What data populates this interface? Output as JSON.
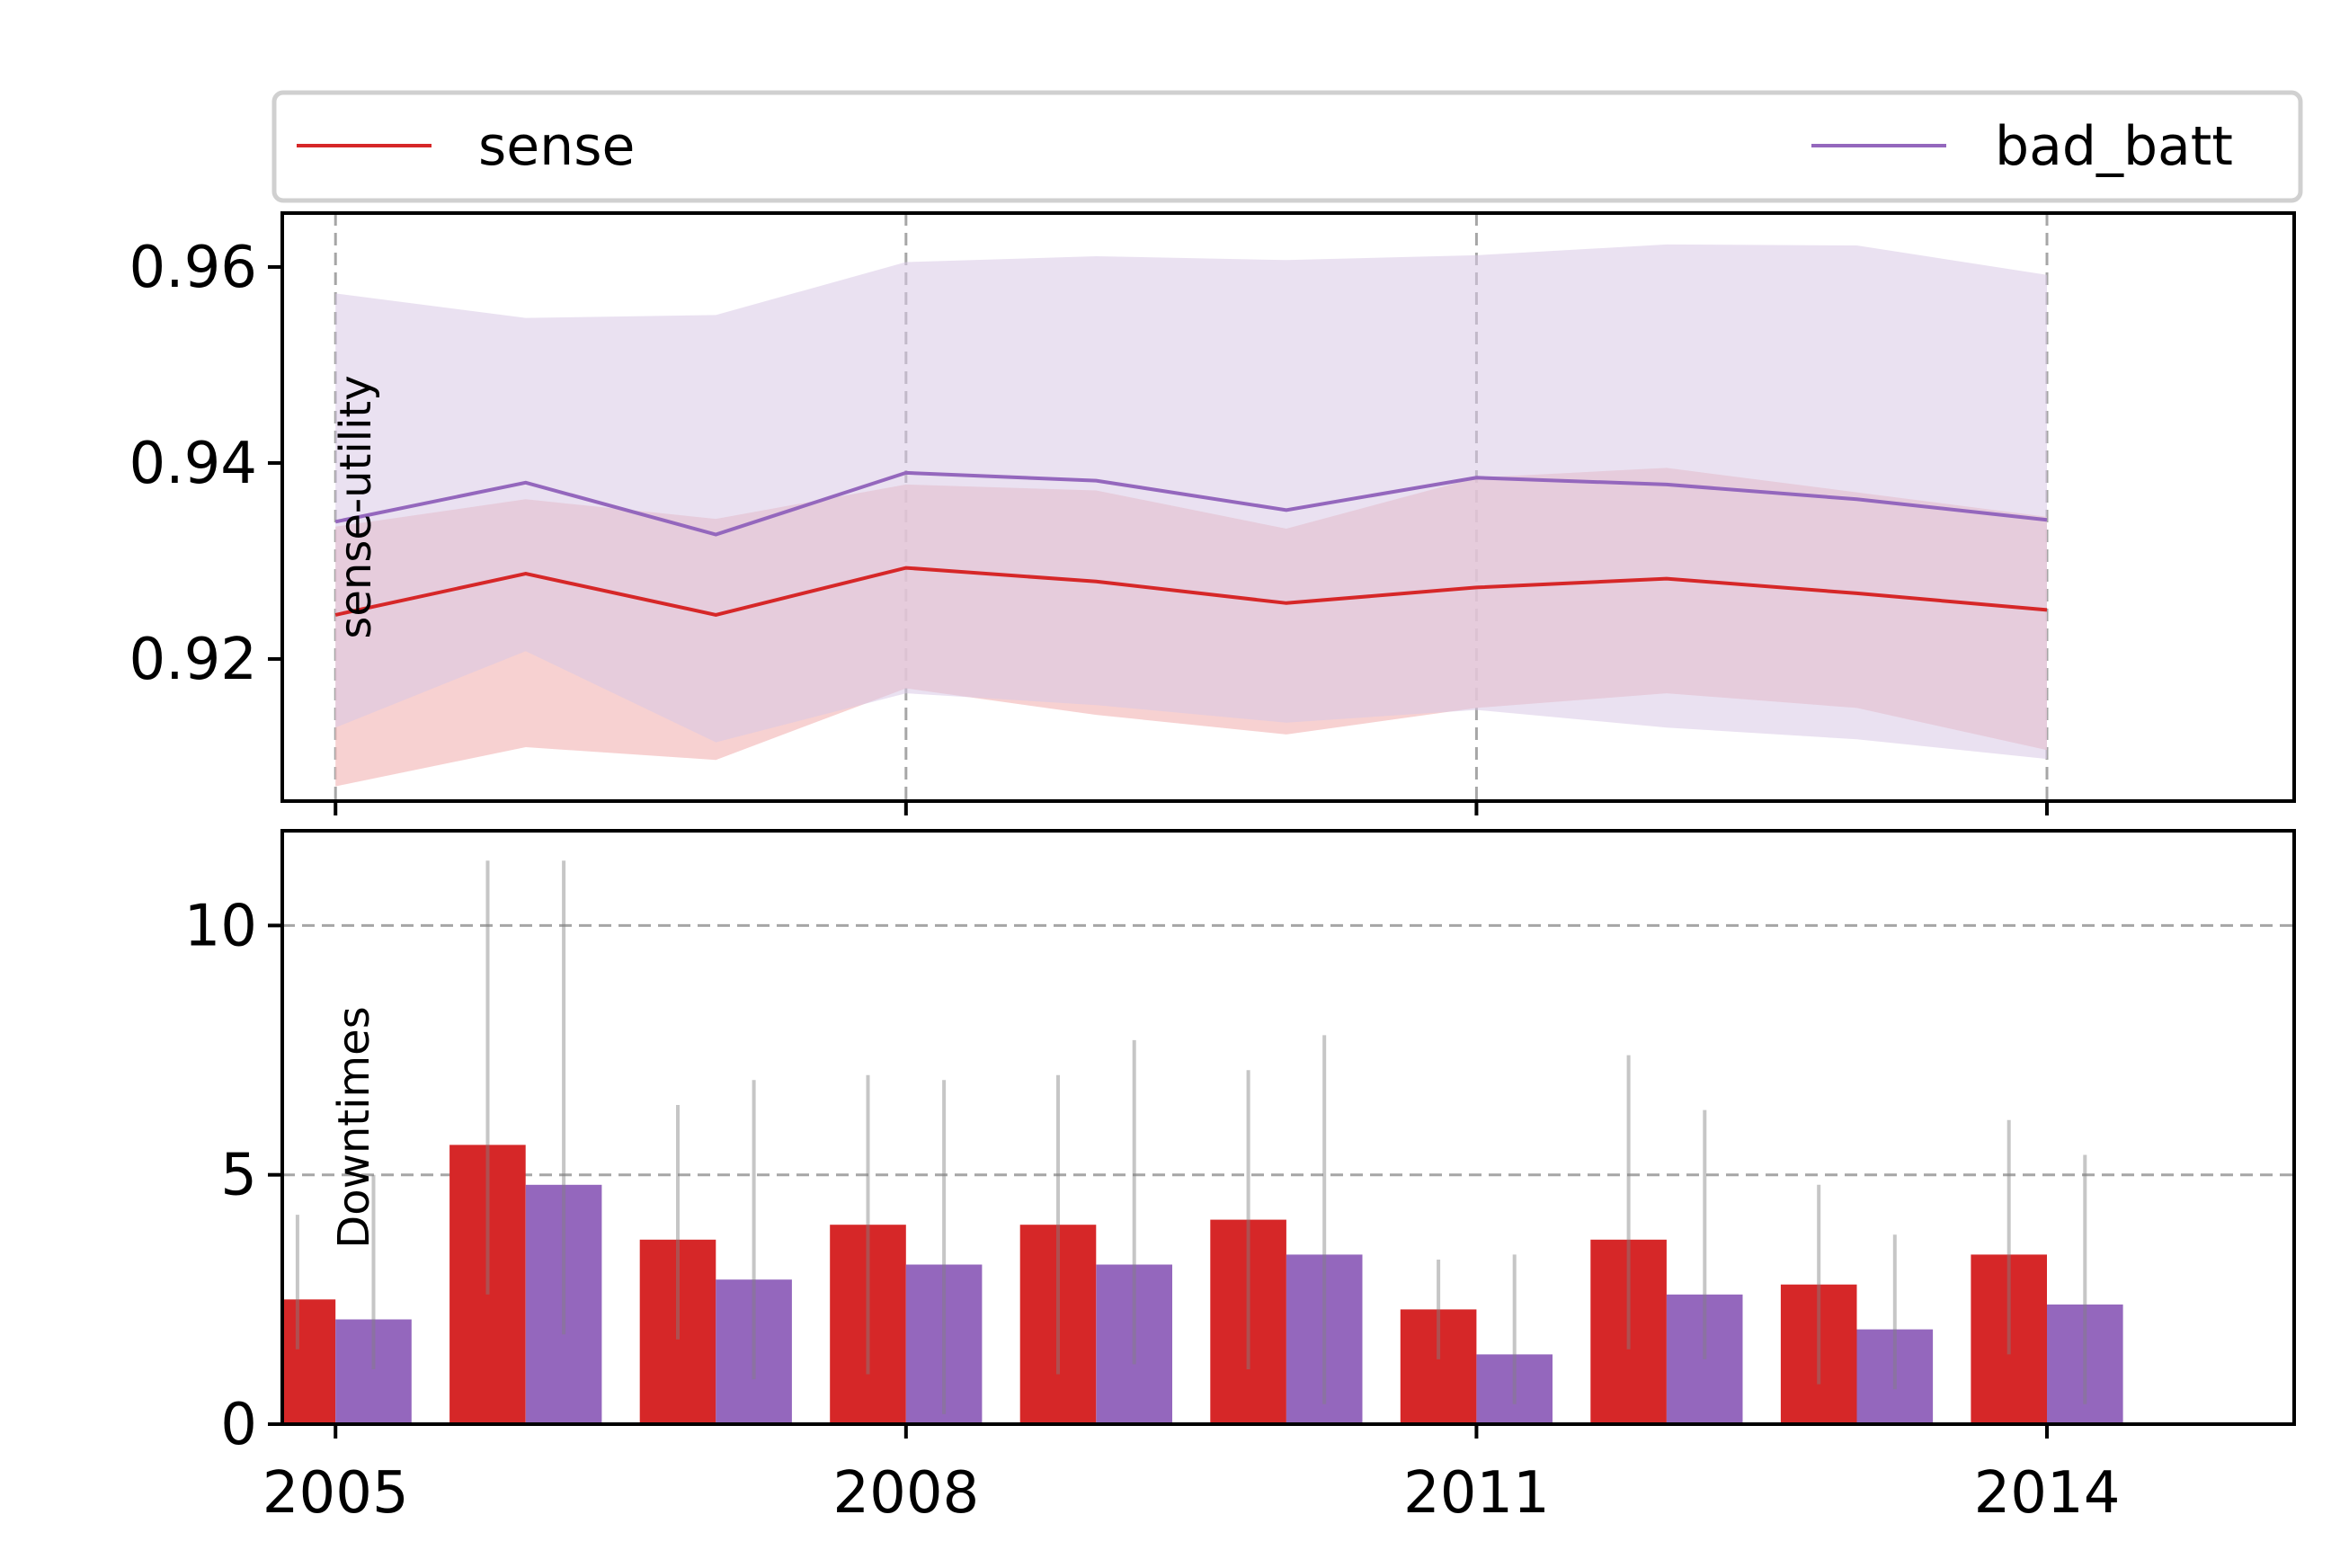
{
  "colors": {
    "sense": "#d62728",
    "bad_batt": "#9467bd",
    "sense_band": "#f4c2c2",
    "bad_batt_band": "#d9c8e6",
    "grid": "#a6a6a6",
    "errorbar": "#808080"
  },
  "legend": {
    "placement": "top",
    "items": [
      {
        "key": "sense",
        "label": "sense"
      },
      {
        "key": "bad_batt",
        "label": "bad_batt"
      }
    ]
  },
  "chart_data": [
    {
      "type": "line",
      "ylabel": "sense-utility",
      "xlabel": "",
      "xlim": [
        2004.72,
        2015.3
      ],
      "ylim": [
        0.9055,
        0.9655
      ],
      "yticks": [
        "0.92",
        "0.94",
        "0.96"
      ],
      "ytick_values": [
        0.92,
        0.94,
        0.96
      ],
      "xtick_values": [
        2005,
        2008,
        2011,
        2014
      ],
      "grid": "vertical dashed at x ticks",
      "x": [
        2005,
        2006,
        2007,
        2008,
        2009,
        2010,
        2011,
        2012,
        2013,
        2014
      ],
      "series": [
        {
          "name": "sense",
          "color": "#d62728",
          "values": [
            0.9245,
            0.9287,
            0.9245,
            0.9293,
            0.9279,
            0.9257,
            0.9273,
            0.9282,
            0.9267,
            0.925
          ],
          "lower": [
            0.907,
            0.911,
            0.9097,
            0.917,
            0.9143,
            0.9123,
            0.915,
            0.9165,
            0.915,
            0.9107
          ],
          "upper": [
            0.9335,
            0.9363,
            0.9343,
            0.9378,
            0.9372,
            0.9333,
            0.9385,
            0.9395,
            0.937,
            0.9345
          ]
        },
        {
          "name": "bad_batt",
          "color": "#9467bd",
          "values": [
            0.934,
            0.938,
            0.9327,
            0.939,
            0.9382,
            0.9352,
            0.9385,
            0.9378,
            0.9363,
            0.9342
          ],
          "lower": [
            0.913,
            0.9208,
            0.9115,
            0.9165,
            0.9153,
            0.9135,
            0.9148,
            0.913,
            0.9118,
            0.9098
          ],
          "upper": [
            0.9573,
            0.9548,
            0.9551,
            0.9605,
            0.9611,
            0.9607,
            0.9612,
            0.9623,
            0.9622,
            0.9592
          ]
        }
      ]
    },
    {
      "type": "bar",
      "ylabel": "Downtimes",
      "xlabel": "",
      "xlim": [
        2004.72,
        2015.3
      ],
      "ylim": [
        0,
        11.9
      ],
      "yticks": [
        "0",
        "5",
        "10"
      ],
      "ytick_values": [
        0,
        5,
        10
      ],
      "xticks": [
        "2005",
        "2008",
        "2011",
        "2014"
      ],
      "xtick_values": [
        2005,
        2008,
        2011,
        2014
      ],
      "grid": "horizontal dashed at y = 5 and 10",
      "x": [
        2005,
        2006,
        2007,
        2008,
        2009,
        2010,
        2011,
        2012,
        2013,
        2014
      ],
      "series": [
        {
          "name": "sense",
          "color": "#d62728",
          "values": [
            2.5,
            5.6,
            3.7,
            4.0,
            4.0,
            4.1,
            2.3,
            3.7,
            2.8,
            3.4
          ],
          "err_low": [
            1.5,
            2.6,
            1.7,
            1.0,
            1.0,
            1.1,
            1.3,
            1.5,
            0.8,
            1.4
          ],
          "err_high": [
            4.2,
            11.3,
            6.4,
            7.0,
            7.0,
            7.1,
            3.3,
            7.4,
            4.8,
            6.1
          ]
        },
        {
          "name": "bad_batt",
          "color": "#9467bd",
          "values": [
            2.1,
            4.8,
            2.9,
            3.2,
            3.2,
            3.4,
            1.4,
            2.6,
            1.9,
            2.4
          ],
          "err_low": [
            1.1,
            1.8,
            0.9,
            0.2,
            1.2,
            0.4,
            0.4,
            1.3,
            0.7,
            0.4
          ],
          "err_high": [
            5.0,
            11.3,
            6.9,
            6.9,
            7.7,
            7.8,
            3.4,
            6.3,
            3.8,
            5.4
          ]
        }
      ]
    }
  ]
}
